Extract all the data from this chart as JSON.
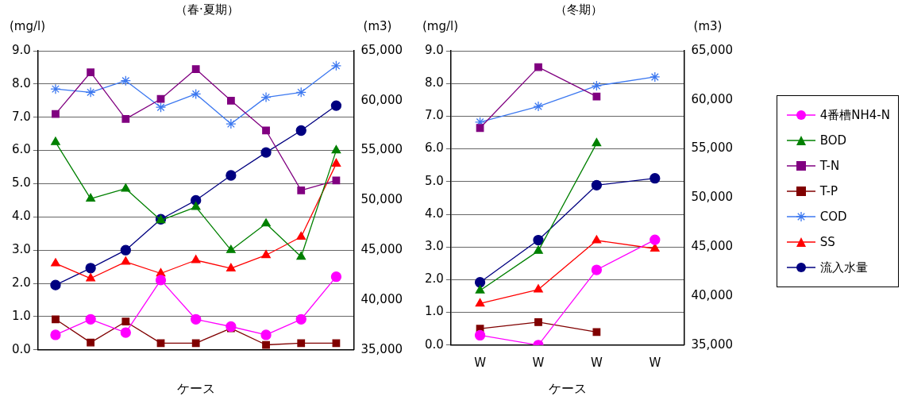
{
  "chart_data": [
    {
      "type": "line",
      "title": "（春·夏期）",
      "xlabel": "ケース",
      "ylabel": "(mg/l)",
      "y2label": "(m3)",
      "categories": [
        null,
        null,
        null,
        null,
        null,
        null,
        null,
        null,
        null
      ],
      "series": [
        {
          "color": "#ff00ff",
          "marker": "circle",
          "values": [
            0.45,
            0.92,
            0.52,
            2.1,
            0.92,
            0.7,
            0.45,
            0.92,
            2.2
          ]
        },
        {
          "color": "#008000",
          "marker": "triangle",
          "values": [
            6.25,
            4.55,
            4.85,
            3.9,
            4.3,
            3.0,
            3.8,
            2.8,
            6.0
          ]
        },
        {
          "color": "#800080",
          "marker": "square",
          "values": [
            7.1,
            8.35,
            6.95,
            7.55,
            8.45,
            7.5,
            6.6,
            4.8,
            5.1
          ]
        },
        {
          "color": "#800000",
          "marker": "square",
          "values": [
            0.92,
            0.22,
            0.85,
            0.2,
            0.2,
            0.65,
            0.15,
            0.2,
            0.2
          ]
        },
        {
          "color": "#3c78f0",
          "marker": "cross",
          "values": [
            7.85,
            7.75,
            8.1,
            7.3,
            7.7,
            6.8,
            7.6,
            7.75,
            8.55
          ]
        },
        {
          "color": "#ff0000",
          "marker": "triangle",
          "values": [
            2.6,
            2.15,
            2.65,
            2.3,
            2.7,
            2.45,
            2.85,
            3.4,
            5.6
          ]
        },
        {
          "color": "#000080",
          "marker": "circle",
          "axis": "y2",
          "values": [
            41500,
            43200,
            45000,
            48100,
            50000,
            52500,
            54800,
            57000,
            59500
          ]
        }
      ],
      "ylim": [
        0,
        9
      ],
      "yticks": [
        {
          "value": 0,
          "label": "0.0"
        },
        {
          "value": 1,
          "label": "1.0"
        },
        {
          "value": 2,
          "label": "2.0"
        },
        {
          "value": 3,
          "label": "3.0"
        },
        {
          "value": 4,
          "label": "4.0"
        },
        {
          "value": 5,
          "label": "5.0"
        },
        {
          "value": 6,
          "label": "6.0"
        },
        {
          "value": 7,
          "label": "7.0"
        },
        {
          "value": 8,
          "label": "8.0"
        },
        {
          "value": 9,
          "label": "9.0"
        }
      ],
      "y2lim": [
        35000,
        65000
      ],
      "y2ticks": [
        {
          "value": 35000,
          "label": "35,000"
        },
        {
          "value": 40000,
          "label": "40,000"
        },
        {
          "value": 45000,
          "label": "45,000"
        },
        {
          "value": 50000,
          "label": "50,000"
        },
        {
          "value": 55000,
          "label": "55,000"
        },
        {
          "value": 60000,
          "label": "60,000"
        },
        {
          "value": 65000,
          "label": "65,000"
        }
      ],
      "grid": "y",
      "tick_labels": "y"
    },
    {
      "type": "line",
      "title": "（冬期）",
      "xlabel": "ケース",
      "ylabel": "(mg/l)",
      "y2label": "(m3)",
      "categories": [
        "W",
        "W",
        "W",
        "W"
      ],
      "series": [
        {
          "name": "4番槽NH4-N",
          "color": "#ff00ff",
          "marker": "circle",
          "values": [
            0.3,
            0.0,
            2.3,
            3.22
          ]
        },
        {
          "name": "BOD",
          "color": "#008000",
          "marker": "triangle",
          "values": [
            1.67,
            2.88,
            6.17,
            null
          ]
        },
        {
          "name": "T-N",
          "color": "#800080",
          "marker": "square",
          "values": [
            6.64,
            8.5,
            7.6,
            null
          ]
        },
        {
          "name": "T-P",
          "color": "#800000",
          "marker": "square",
          "values": [
            0.5,
            0.7,
            0.4,
            null
          ]
        },
        {
          "name": "COD",
          "color": "#3c78f0",
          "marker": "cross",
          "values": [
            6.82,
            7.3,
            7.93,
            8.2
          ]
        },
        {
          "name": "SS",
          "color": "#ff0000",
          "marker": "triangle",
          "values": [
            1.27,
            1.7,
            3.2,
            2.95
          ]
        },
        {
          "name": "流入水量",
          "color": "#000080",
          "marker": "circle",
          "axis": "y2",
          "values": [
            41400,
            45700,
            51300,
            52000
          ]
        }
      ],
      "ylim": [
        0,
        9
      ],
      "yticks": [
        {
          "value": 0,
          "label": "0.0"
        },
        {
          "value": 1,
          "label": "1.0"
        },
        {
          "value": 2,
          "label": "2.0"
        },
        {
          "value": 3,
          "label": "3.0"
        },
        {
          "value": 4,
          "label": "4.0"
        },
        {
          "value": 5,
          "label": "5.0"
        },
        {
          "value": 6,
          "label": "6.0"
        },
        {
          "value": 7,
          "label": "7.0"
        },
        {
          "value": 8,
          "label": "8.0"
        },
        {
          "value": 9,
          "label": "9.0"
        }
      ],
      "y2lim": [
        35000,
        65000
      ],
      "y2ticks": [
        {
          "value": 35000,
          "label": "35,000"
        },
        {
          "value": 40000,
          "label": "40,000"
        },
        {
          "value": 45000,
          "label": "45,000"
        },
        {
          "value": 50000,
          "label": "50,000"
        },
        {
          "value": 55000,
          "label": "55,000"
        },
        {
          "value": 60000,
          "label": "60,000"
        },
        {
          "value": 65000,
          "label": "65,000"
        }
      ],
      "grid": "y",
      "legend": "right"
    }
  ]
}
